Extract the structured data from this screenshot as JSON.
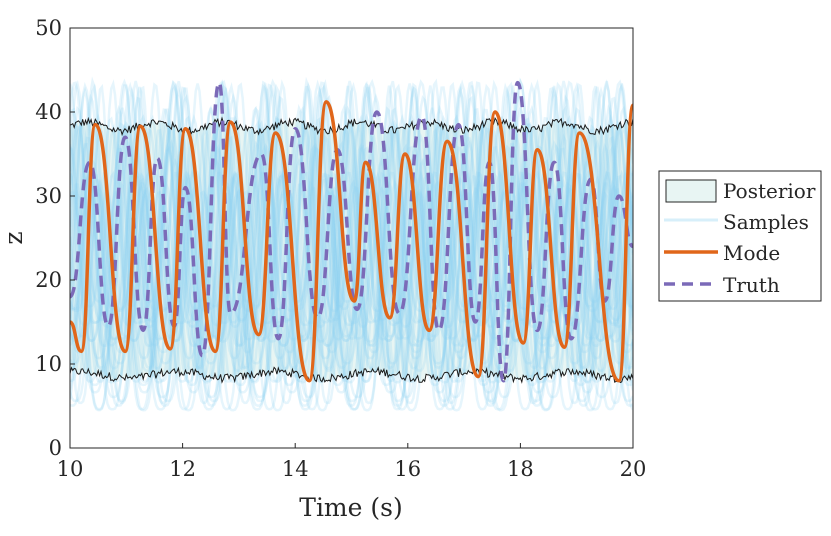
{
  "chart_data": {
    "type": "line",
    "title": "",
    "xlabel": "Time (s)",
    "ylabel": "z",
    "xlim": [
      10,
      20
    ],
    "ylim": [
      0,
      50
    ],
    "xticks": [
      10,
      12,
      14,
      16,
      18,
      20
    ],
    "yticks": [
      0,
      10,
      20,
      30,
      40,
      50
    ],
    "legend": {
      "placement": "outside-right",
      "entries": [
        "Posterior",
        "Samples",
        "Mode",
        "Truth"
      ]
    },
    "colors": {
      "posterior_fill": "#e8f5f3",
      "samples": "#8fd3f2",
      "mode": "#e0661a",
      "truth": "#7b6ab8",
      "bounds": "#1a1a1a"
    },
    "posterior": {
      "name": "Posterior",
      "upper_mean": 38.3,
      "lower_mean": 8.7,
      "noise": 0.5
    },
    "samples": {
      "name": "Samples",
      "count": 40,
      "period_s": 0.8,
      "peak_range": [
        30,
        44
      ],
      "trough_range": [
        4,
        18
      ]
    },
    "series": [
      {
        "name": "Mode",
        "style": "solid",
        "x_start": 10.0,
        "y_start": 15,
        "peaks": [
          [
            10.45,
            38.5
          ],
          [
            11.25,
            38.3
          ],
          [
            12.05,
            38.0
          ],
          [
            12.85,
            38.8
          ],
          [
            13.65,
            37.5
          ],
          [
            14.55,
            41.2
          ],
          [
            15.25,
            34.0
          ],
          [
            15.95,
            35.0
          ],
          [
            16.7,
            36.5
          ],
          [
            17.55,
            40.0
          ],
          [
            18.3,
            35.5
          ],
          [
            19.05,
            37.5
          ],
          [
            20.0,
            40.8
          ]
        ],
        "troughs": [
          [
            10.2,
            11.5
          ],
          [
            10.98,
            11.5
          ],
          [
            11.78,
            11.8
          ],
          [
            12.58,
            11.5
          ],
          [
            13.35,
            13.5
          ],
          [
            14.25,
            8.0
          ],
          [
            15.05,
            17.5
          ],
          [
            15.68,
            15.5
          ],
          [
            16.38,
            14.0
          ],
          [
            17.25,
            8.5
          ],
          [
            18.05,
            12.5
          ],
          [
            18.78,
            12.0
          ],
          [
            19.75,
            8.0
          ]
        ]
      },
      {
        "name": "Truth",
        "style": "dashed",
        "x_start": 10.0,
        "y_start": 18,
        "peaks": [
          [
            10.35,
            34.0
          ],
          [
            10.98,
            37.0
          ],
          [
            11.55,
            34.5
          ],
          [
            12.05,
            31.0
          ],
          [
            12.65,
            43.5
          ],
          [
            13.4,
            35.0
          ],
          [
            14.0,
            38.0
          ],
          [
            14.75,
            35.5
          ],
          [
            15.45,
            40.0
          ],
          [
            16.25,
            39.5
          ],
          [
            16.9,
            38.5
          ],
          [
            17.45,
            34.0
          ],
          [
            17.95,
            43.5
          ],
          [
            18.6,
            34.0
          ],
          [
            19.25,
            32.0
          ],
          [
            19.75,
            30.0
          ]
        ],
        "troughs": [
          [
            10.68,
            14.5
          ],
          [
            11.3,
            14.0
          ],
          [
            11.85,
            14.5
          ],
          [
            12.35,
            11.0
          ],
          [
            12.85,
            16.0
          ],
          [
            13.7,
            13.0
          ],
          [
            14.4,
            15.5
          ],
          [
            15.1,
            16.5
          ],
          [
            15.85,
            16.0
          ],
          [
            16.55,
            14.0
          ],
          [
            17.2,
            15.0
          ],
          [
            17.7,
            8.0
          ],
          [
            18.3,
            14.0
          ],
          [
            18.9,
            13.0
          ],
          [
            19.5,
            17.5
          ],
          [
            20.0,
            24.0
          ]
        ]
      }
    ]
  }
}
